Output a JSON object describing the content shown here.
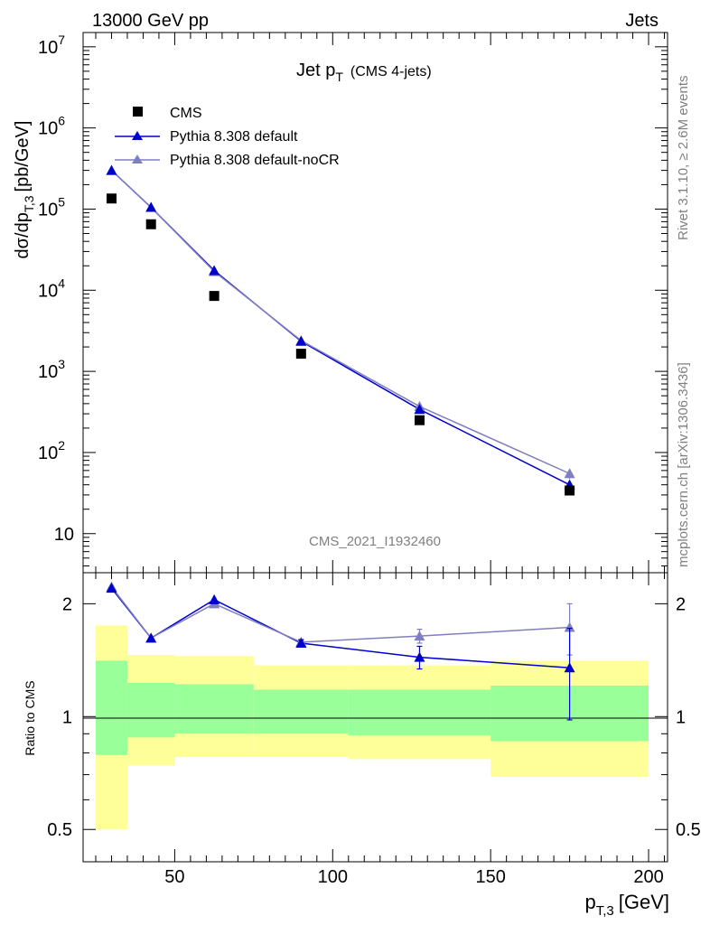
{
  "header": {
    "left": "13000 GeV pp",
    "right": "Jets"
  },
  "side_text": {
    "rivet": "Rivet 3.1.10, ≥ 2.6M events",
    "mcplots": "mcplots.cern.ch [arXiv:1306.3436]"
  },
  "watermark": "CMS_2021_I1932460",
  "colors": {
    "cms": "#000000",
    "pythia_default": "#0000cc",
    "pythia_nocr": "#7f7fbf",
    "band_inner": "#99ff99",
    "band_outer": "#ffff99"
  },
  "chart_data": [
    {
      "type": "scatter",
      "title_main": "Jet p",
      "title_sub": "T",
      "title_extra": "(CMS 4-jets)",
      "ylabel_main": "dσ/dp",
      "ylabel_sub": "T,3",
      "ylabel_unit": "[pb/GeV]",
      "yscale": "log",
      "xlim": [
        21,
        206
      ],
      "ylim": [
        3.3,
        15000000
      ],
      "ytick_labels": [
        {
          "base": "10",
          "exp": "7",
          "value": 10000000
        },
        {
          "base": "10",
          "exp": "6",
          "value": 1000000
        },
        {
          "base": "10",
          "exp": "5",
          "value": 100000
        },
        {
          "base": "10",
          "exp": "4",
          "value": 10000
        },
        {
          "base": "10",
          "exp": "3",
          "value": 1000
        },
        {
          "base": "10",
          "exp": "2",
          "value": 100
        },
        {
          "base": "10",
          "exp": "",
          "value": 10
        }
      ],
      "legend_position": "top-left",
      "series": [
        {
          "name": "CMS",
          "style": "square",
          "x": [
            30,
            42.5,
            62.5,
            90,
            127.5,
            175
          ],
          "y": [
            135000,
            65000,
            8500,
            1650,
            250,
            34
          ]
        },
        {
          "name": "Pythia 8.308 default",
          "style": "line-triangle",
          "color": "#0000cc",
          "x": [
            30,
            42.5,
            62.5,
            90,
            127.5,
            175
          ],
          "y": [
            300000,
            105000,
            17500,
            2350,
            340,
            40
          ],
          "yerr": [
            0,
            0,
            0,
            0,
            20,
            4
          ]
        },
        {
          "name": "Pythia 8.308 default-noCR",
          "style": "line-triangle",
          "color": "#7f7fbf",
          "x": [
            30,
            42.5,
            62.5,
            90,
            127.5,
            175
          ],
          "y": [
            300000,
            105000,
            17000,
            2400,
            370,
            55
          ],
          "yerr": [
            0,
            0,
            0,
            0,
            25,
            8
          ]
        }
      ]
    },
    {
      "type": "line",
      "ylabel": "Ratio to CMS",
      "xlabel_main": "p",
      "xlabel_sub": "T,3",
      "xlabel_unit": "[GeV]",
      "yscale": "log",
      "xlim": [
        21,
        206
      ],
      "ylim": [
        0.41,
        2.42
      ],
      "xtick_labels": [
        {
          "label": "50",
          "value": 50
        },
        {
          "label": "100",
          "value": 100
        },
        {
          "label": "150",
          "value": 150
        },
        {
          "label": "200",
          "value": 200
        }
      ],
      "ytick_labels": [
        {
          "label": "2",
          "value": 2
        },
        {
          "label": "1",
          "value": 1
        },
        {
          "label": "0.5",
          "value": 0.5
        }
      ],
      "bands": [
        {
          "xlo": 25,
          "xhi": 35,
          "outer": [
            0.5,
            1.75
          ],
          "inner": [
            0.79,
            1.41
          ]
        },
        {
          "xlo": 35,
          "xhi": 50,
          "outer": [
            0.74,
            1.46
          ],
          "inner": [
            0.88,
            1.23
          ]
        },
        {
          "xlo": 50,
          "xhi": 75,
          "outer": [
            0.78,
            1.45
          ],
          "inner": [
            0.9,
            1.22
          ]
        },
        {
          "xlo": 75,
          "xhi": 105,
          "outer": [
            0.78,
            1.37
          ],
          "inner": [
            0.9,
            1.18
          ]
        },
        {
          "xlo": 105,
          "xhi": 150,
          "outer": [
            0.77,
            1.37
          ],
          "inner": [
            0.89,
            1.18
          ]
        },
        {
          "xlo": 150,
          "xhi": 200,
          "outer": [
            0.69,
            1.41
          ],
          "inner": [
            0.86,
            1.21
          ]
        }
      ],
      "series": [
        {
          "name": "Pythia 8.308 default",
          "color": "#0000cc",
          "x": [
            30,
            42.5,
            62.5,
            90,
            127.5,
            175
          ],
          "y": [
            2.2,
            1.62,
            2.05,
            1.57,
            1.44,
            1.35
          ],
          "yerr": [
            0.02,
            0.02,
            0.02,
            0.03,
            0.1,
            0.37
          ]
        },
        {
          "name": "Pythia 8.308 default-noCR",
          "color": "#7f7fbf",
          "x": [
            30,
            42.5,
            62.5,
            90,
            127.5,
            175
          ],
          "y": [
            2.22,
            1.62,
            2.0,
            1.58,
            1.64,
            1.73
          ],
          "yerr": [
            0.02,
            0.02,
            0.02,
            0.03,
            0.07,
            0.27
          ]
        }
      ]
    }
  ]
}
